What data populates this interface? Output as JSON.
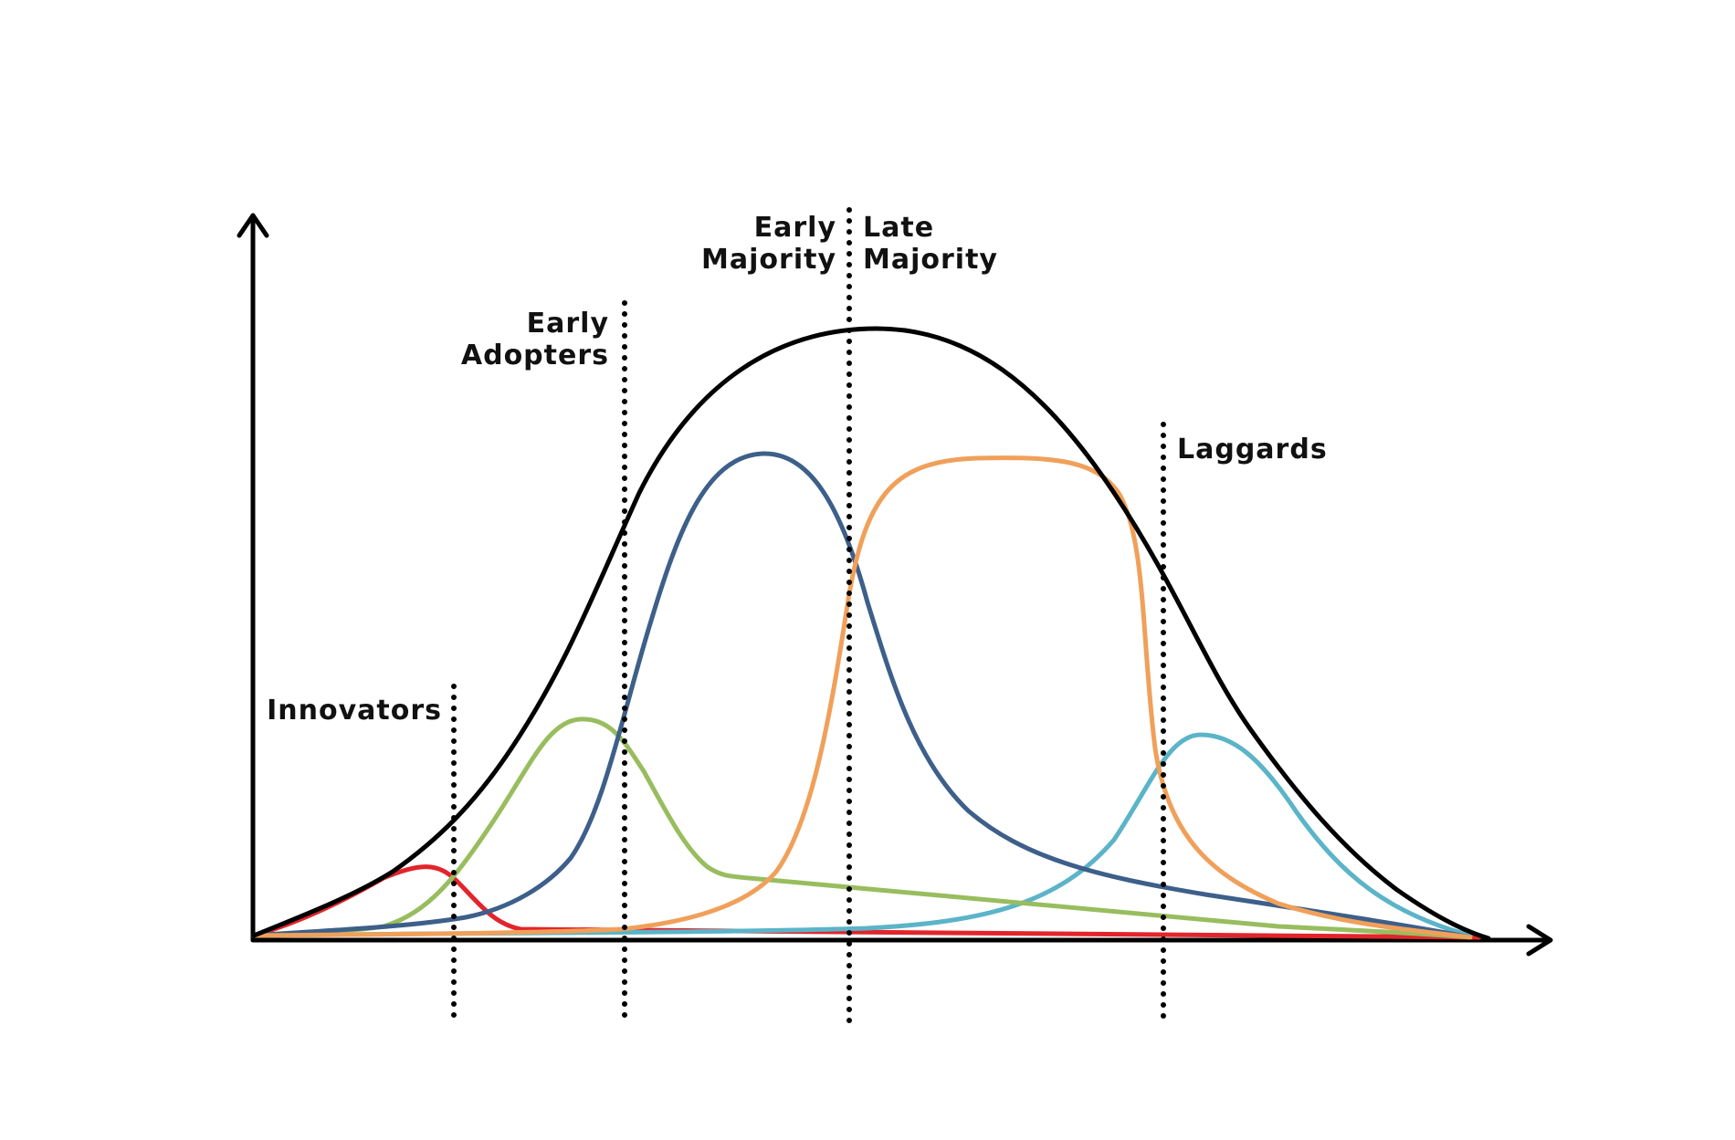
{
  "labels": {
    "innovators": "Innovators",
    "early_adopters_line1": "Early",
    "early_adopters_line2": "Adopters",
    "early_majority_line1": "Early",
    "early_majority_line2": "Majority",
    "late_majority_line1": "Late",
    "late_majority_line2": "Majority",
    "laggards": "Laggards"
  },
  "colors": {
    "overall_curve": "#000000",
    "innovators_curve": "#e3242b",
    "early_adopters_curve": "#98bd5e",
    "early_majority_curve": "#3d5f8a",
    "late_majority_curve": "#f0a05a",
    "laggards_curve": "#5bb4c8",
    "dividers": "#000000",
    "axes": "#000000"
  },
  "icons": {
    "y_axis_arrow": "arrow-up-icon",
    "x_axis_arrow": "arrow-right-icon"
  }
}
